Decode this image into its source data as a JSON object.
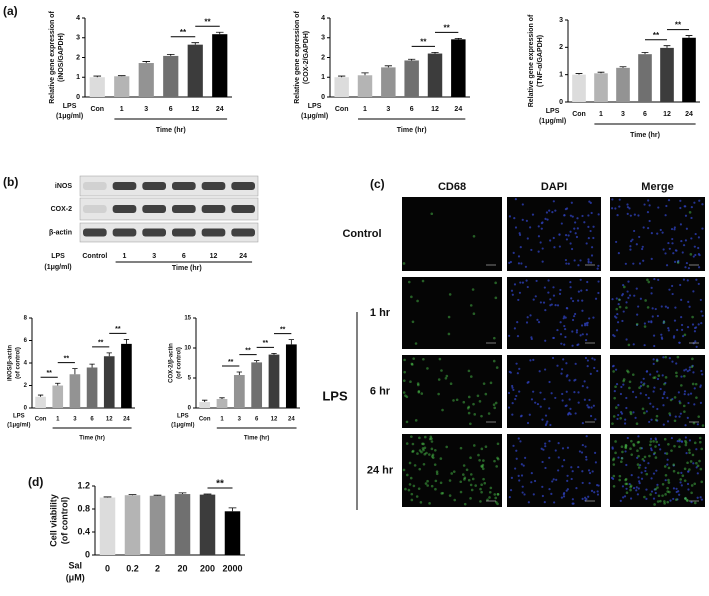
{
  "panel_labels": [
    "(a)",
    "(b)",
    "(c)",
    "(d)"
  ],
  "chart_data": [
    {
      "type": "bar",
      "ylabel": [
        "Relative gene expression of",
        "(iNOS/GAPDH)"
      ],
      "row_label": [
        "LPS",
        "(1μg/ml)"
      ],
      "xlabel": "Time (hr)",
      "categories": [
        "Con",
        "1",
        "3",
        "6",
        "12",
        "24"
      ],
      "values": [
        1.0,
        1.05,
        1.72,
        2.08,
        2.65,
        3.18
      ],
      "errors": [
        0.06,
        0.03,
        0.08,
        0.08,
        0.1,
        0.1
      ],
      "colors": [
        "#dcdcdc",
        "#b4b4b4",
        "#939393",
        "#707070",
        "#3c3c3c",
        "#000000"
      ],
      "ylim": [
        0,
        4
      ],
      "yticks": [
        0,
        1,
        2,
        3,
        4
      ],
      "annotations": [
        {
          "between": [
            "6",
            "12"
          ],
          "label": "**"
        },
        {
          "between": [
            "12",
            "24"
          ],
          "label": "**"
        }
      ]
    },
    {
      "type": "bar",
      "ylabel": [
        "Relative gene expression of",
        "(COX-2/GAPDH)"
      ],
      "row_label": [
        "LPS",
        "(1μg/ml)"
      ],
      "xlabel": "Time (hr)",
      "categories": [
        "Con",
        "1",
        "3",
        "6",
        "12",
        "24"
      ],
      "values": [
        1.0,
        1.1,
        1.5,
        1.85,
        2.2,
        2.92
      ],
      "errors": [
        0.06,
        0.12,
        0.08,
        0.06,
        0.06,
        0.05
      ],
      "colors": [
        "#dcdcdc",
        "#b4b4b4",
        "#939393",
        "#707070",
        "#3c3c3c",
        "#000000"
      ],
      "ylim": [
        0,
        4
      ],
      "yticks": [
        0,
        1,
        2,
        3,
        4
      ],
      "annotations": [
        {
          "between": [
            "6",
            "12"
          ],
          "label": "**"
        },
        {
          "between": [
            "12",
            "24"
          ],
          "label": "**"
        }
      ]
    },
    {
      "type": "bar",
      "ylabel": [
        "Relative gene expression of",
        "(TNF-α/GAPDH)"
      ],
      "row_label": [
        "LPS",
        "(1μg/ml)"
      ],
      "xlabel": "Time (hr)",
      "categories": [
        "Con",
        "1",
        "3",
        "6",
        "12",
        "24"
      ],
      "values": [
        1.0,
        1.05,
        1.25,
        1.75,
        1.98,
        2.35
      ],
      "errors": [
        0.04,
        0.04,
        0.04,
        0.06,
        0.08,
        0.08
      ],
      "colors": [
        "#dcdcdc",
        "#b4b4b4",
        "#939393",
        "#707070",
        "#3c3c3c",
        "#000000"
      ],
      "ylim": [
        0,
        3
      ],
      "yticks": [
        0,
        1,
        2,
        3
      ],
      "annotations": [
        {
          "between": [
            "6",
            "12"
          ],
          "label": "**"
        },
        {
          "between": [
            "12",
            "24"
          ],
          "label": "**"
        }
      ]
    },
    {
      "type": "bar",
      "ylabel": [
        "iNOS/β-actin",
        "(of control)"
      ],
      "row_label": [
        "LPS",
        "(1μg/ml)"
      ],
      "xlabel": "Time (hr)",
      "categories": [
        "Con",
        "1",
        "3",
        "6",
        "12",
        "24"
      ],
      "values": [
        1.0,
        2.0,
        3.0,
        3.6,
        4.6,
        5.7
      ],
      "errors": [
        0.15,
        0.2,
        0.5,
        0.3,
        0.3,
        0.4
      ],
      "colors": [
        "#dcdcdc",
        "#b4b4b4",
        "#939393",
        "#707070",
        "#3c3c3c",
        "#000000"
      ],
      "ylim": [
        0,
        8
      ],
      "yticks": [
        0,
        2,
        4,
        6,
        8
      ],
      "annotations": [
        {
          "between": [
            "Con",
            "1"
          ],
          "label": "**"
        },
        {
          "between": [
            "1",
            "3"
          ],
          "label": "**"
        },
        {
          "between": [
            "6",
            "12"
          ],
          "label": "**"
        },
        {
          "between": [
            "12",
            "24"
          ],
          "label": "**"
        }
      ]
    },
    {
      "type": "bar",
      "ylabel": [
        "COX-2/β-actin",
        "(of control)"
      ],
      "row_label": [
        "LPS",
        "(1μg/ml)"
      ],
      "xlabel": "Time (hr)",
      "categories": [
        "Con",
        "1",
        "3",
        "6",
        "12",
        "24"
      ],
      "values": [
        1.0,
        1.5,
        5.5,
        7.6,
        8.9,
        10.6
      ],
      "errors": [
        0.3,
        0.2,
        0.5,
        0.3,
        0.2,
        0.8
      ],
      "colors": [
        "#dcdcdc",
        "#b4b4b4",
        "#939393",
        "#707070",
        "#3c3c3c",
        "#000000"
      ],
      "ylim": [
        0,
        15
      ],
      "yticks": [
        0,
        5,
        10,
        15
      ],
      "annotations": [
        {
          "between": [
            "1",
            "3"
          ],
          "label": "**"
        },
        {
          "between": [
            "3",
            "6"
          ],
          "label": "**"
        },
        {
          "between": [
            "6",
            "12"
          ],
          "label": "**"
        },
        {
          "between": [
            "12",
            "24"
          ],
          "label": "**"
        }
      ]
    },
    {
      "type": "bar",
      "ylabel": [
        "Cell viability",
        "(of control)"
      ],
      "row_label": [
        "Sal",
        "(μM)"
      ],
      "categories": [
        "0",
        "0.2",
        "2",
        "20",
        "200",
        "2000"
      ],
      "values": [
        1.0,
        1.04,
        1.03,
        1.06,
        1.05,
        0.76
      ],
      "errors": [
        0.01,
        0.01,
        0.01,
        0.02,
        0.01,
        0.06
      ],
      "colors": [
        "#dcdcdc",
        "#b4b4b4",
        "#939393",
        "#707070",
        "#3c3c3c",
        "#000000"
      ],
      "ylim": [
        0,
        1.2
      ],
      "yticks": [
        0,
        0.4,
        0.8,
        1.2
      ],
      "annotations": [
        {
          "between": [
            "200",
            "2000"
          ],
          "label": "**"
        }
      ]
    }
  ],
  "blot": {
    "rows": [
      "iNOS",
      "COX-2",
      "β-actin"
    ],
    "row_label": [
      "LPS",
      "(1μg/ml)"
    ],
    "lanes": [
      "Control",
      "1",
      "3",
      "6",
      "12",
      "24"
    ],
    "xlabel": "Time (hr)"
  },
  "microscopy": {
    "columns": [
      "CD68",
      "DAPI",
      "Merge"
    ],
    "rows": [
      "Control",
      "1 hr",
      "6 hr",
      "24 hr"
    ],
    "group": "LPS"
  }
}
